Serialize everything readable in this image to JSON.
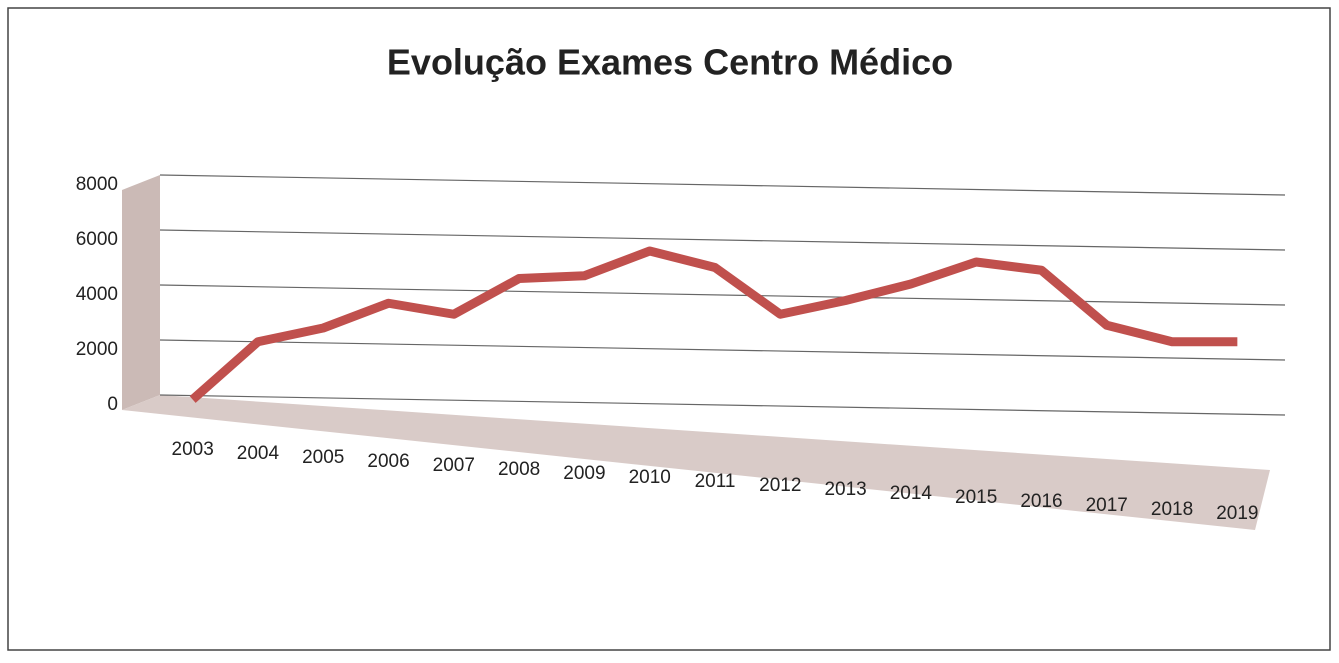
{
  "chart_data": {
    "type": "line",
    "title": "Evolução Exames Centro Médico",
    "categories": [
      "2003",
      "2004",
      "2005",
      "2006",
      "2007",
      "2008",
      "2009",
      "2010",
      "2011",
      "2012",
      "2013",
      "2014",
      "2015",
      "2016",
      "2017",
      "2018",
      "2019"
    ],
    "values": [
      200,
      2300,
      2800,
      3700,
      3300,
      4600,
      4700,
      5600,
      5000,
      3300,
      3800,
      4400,
      5200,
      4900,
      2900,
      2300,
      2300
    ],
    "color": "#c0504d",
    "ylim": [
      0,
      8000
    ],
    "yticks": [
      0,
      2000,
      4000,
      6000,
      8000
    ],
    "grid": true
  }
}
